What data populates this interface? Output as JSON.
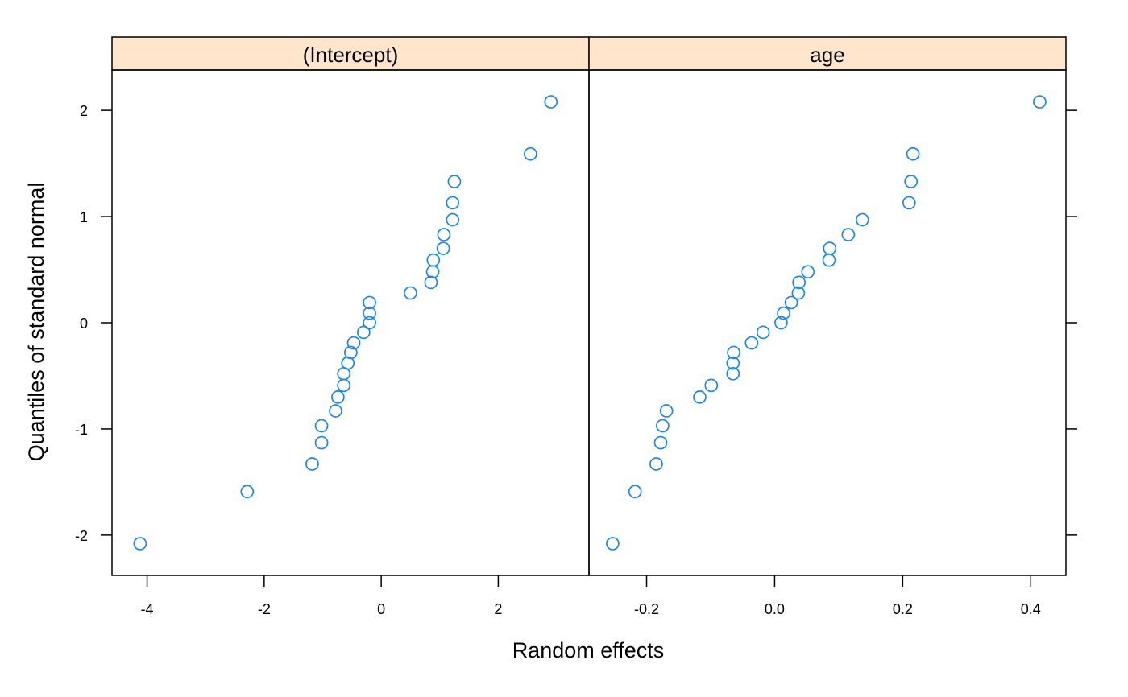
{
  "chart_data": {
    "type": "scatter",
    "title": "",
    "xlabel": "Random effects",
    "ylabel": "Quantiles of standard normal",
    "ylim": [
      -2.38,
      2.38
    ],
    "yticks": [
      -2,
      -1,
      0,
      1,
      2
    ],
    "ytick_labels": [
      "-2",
      "-1",
      "0",
      "1",
      "2"
    ],
    "panels": [
      {
        "name": "(Intercept)",
        "xlim": [
          -4.6,
          3.55
        ],
        "xticks": [
          -4,
          -2,
          0,
          2
        ],
        "xtick_labels": [
          "-4",
          "-2",
          "0",
          "2"
        ],
        "x": [
          -4.12,
          -2.29,
          -1.18,
          -1.02,
          -1.02,
          -0.78,
          -0.74,
          -0.64,
          -0.64,
          -0.57,
          -0.52,
          -0.47,
          -0.3,
          -0.2,
          -0.2,
          -0.2,
          0.5,
          0.85,
          0.88,
          0.89,
          1.06,
          1.07,
          1.22,
          1.22,
          1.25,
          2.55,
          2.9
        ],
        "y": [
          -2.08,
          -1.59,
          -1.33,
          -1.13,
          -0.97,
          -0.83,
          -0.7,
          -0.59,
          -0.48,
          -0.38,
          -0.28,
          -0.19,
          -0.09,
          0.0,
          0.09,
          0.19,
          0.28,
          0.38,
          0.48,
          0.59,
          0.7,
          0.83,
          0.97,
          1.13,
          1.33,
          1.59,
          2.08
        ]
      },
      {
        "name": "age",
        "xlim": [
          -0.29,
          0.455
        ],
        "xticks": [
          -0.2,
          0.0,
          0.2,
          0.4
        ],
        "xtick_labels": [
          "-0.2",
          "0.0",
          "0.2",
          "0.4"
        ],
        "x": [
          -0.253,
          -0.218,
          -0.185,
          -0.178,
          -0.175,
          -0.169,
          -0.117,
          -0.099,
          -0.065,
          -0.065,
          -0.064,
          -0.036,
          -0.018,
          0.01,
          0.014,
          0.026,
          0.037,
          0.038,
          0.052,
          0.085,
          0.086,
          0.115,
          0.137,
          0.21,
          0.213,
          0.216,
          0.414
        ],
        "y": [
          -2.08,
          -1.59,
          -1.33,
          -1.13,
          -0.97,
          -0.83,
          -0.7,
          -0.59,
          -0.48,
          -0.38,
          -0.28,
          -0.19,
          -0.09,
          0.0,
          0.09,
          0.19,
          0.28,
          0.38,
          0.48,
          0.59,
          0.7,
          0.83,
          0.97,
          1.13,
          1.33,
          1.59,
          2.08
        ]
      }
    ],
    "colors": {
      "points": "#1c86ee",
      "strip": "#ffe5cc",
      "frame": "#000000"
    },
    "grid": false,
    "legend": "none"
  }
}
